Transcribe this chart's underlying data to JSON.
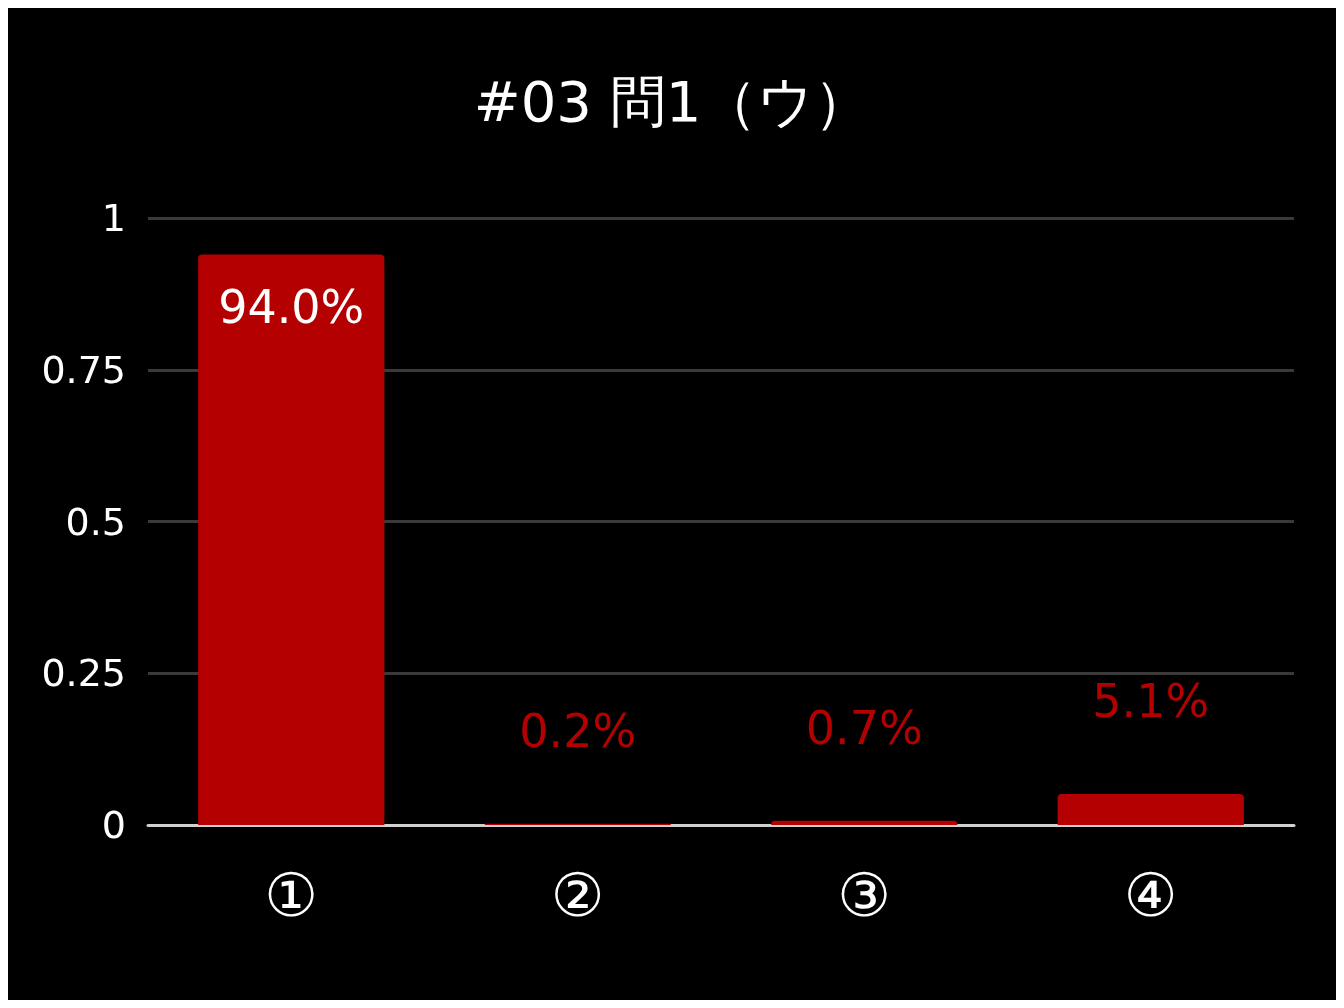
{
  "chart_data": {
    "type": "bar",
    "title": "#03 問1（ウ）",
    "categories": [
      "①",
      "②",
      "③",
      "④"
    ],
    "values": [
      0.94,
      0.002,
      0.007,
      0.051
    ],
    "value_labels": [
      "94.0%",
      "0.2%",
      "0.7%",
      "5.1%"
    ],
    "color": "#b40000",
    "ylim": [
      0,
      1
    ],
    "yticks": [
      0,
      0.25,
      0.5,
      0.75,
      1
    ],
    "grid": "y"
  }
}
